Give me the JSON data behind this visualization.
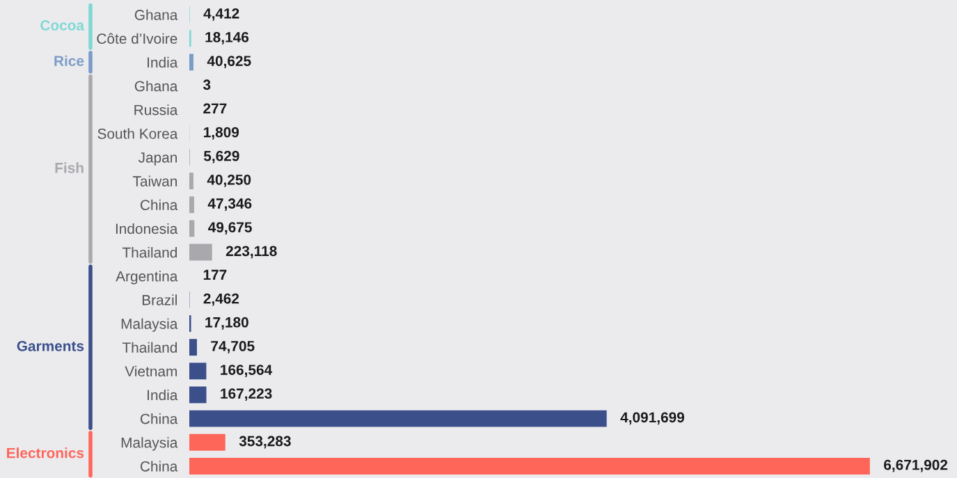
{
  "chart_data": {
    "type": "bar",
    "orientation": "horizontal",
    "categories": [
      "Ghana",
      "Côte d’Ivoire",
      "India",
      "Ghana",
      "Russia",
      "South Korea",
      "Japan",
      "Taiwan",
      "China",
      "Indonesia",
      "Thailand",
      "Argentina",
      "Brazil",
      "Malaysia",
      "Thailand",
      "Vietnam",
      "India",
      "China",
      "Malaysia",
      "China"
    ],
    "series": [
      {
        "name": "Cocoa",
        "color": "#7fd8d4",
        "values": [
          4412,
          18146,
          null,
          null,
          null,
          null,
          null,
          null,
          null,
          null,
          null,
          null,
          null,
          null,
          null,
          null,
          null,
          null,
          null,
          null
        ],
        "value_labels": [
          "4,412",
          "18,146",
          null,
          null,
          null,
          null,
          null,
          null,
          null,
          null,
          null,
          null,
          null,
          null,
          null,
          null,
          null,
          null,
          null,
          null
        ]
      },
      {
        "name": "Rice",
        "color": "#7b9cc8",
        "values": [
          null,
          null,
          40625,
          null,
          null,
          null,
          null,
          null,
          null,
          null,
          null,
          null,
          null,
          null,
          null,
          null,
          null,
          null,
          null,
          null
        ],
        "value_labels": [
          null,
          null,
          "40,625",
          null,
          null,
          null,
          null,
          null,
          null,
          null,
          null,
          null,
          null,
          null,
          null,
          null,
          null,
          null,
          null,
          null
        ]
      },
      {
        "name": "Fish",
        "color": "#a9a9ad",
        "values": [
          null,
          null,
          null,
          3,
          277,
          1809,
          5629,
          40250,
          47346,
          49675,
          223118,
          null,
          null,
          null,
          null,
          null,
          null,
          null,
          null,
          null
        ],
        "value_labels": [
          null,
          null,
          null,
          "3",
          "277",
          "1,809",
          "5,629",
          "40,250",
          "47,346",
          "49,675",
          "223,118",
          null,
          null,
          null,
          null,
          null,
          null,
          null,
          null,
          null
        ]
      },
      {
        "name": "Garments",
        "color": "#3b4f8a",
        "values": [
          null,
          null,
          null,
          null,
          null,
          null,
          null,
          null,
          null,
          null,
          null,
          177,
          2462,
          17180,
          74705,
          166564,
          167223,
          4091699,
          null,
          null
        ],
        "value_labels": [
          null,
          null,
          null,
          null,
          null,
          null,
          null,
          null,
          null,
          null,
          null,
          "177",
          "2,462",
          "17,180",
          "74,705",
          "166,564",
          "167,223",
          "4,091,699",
          null,
          null
        ]
      },
      {
        "name": "Electronics",
        "color": "#ff665a",
        "values": [
          null,
          null,
          null,
          null,
          null,
          null,
          null,
          null,
          null,
          null,
          null,
          null,
          null,
          null,
          null,
          null,
          null,
          null,
          353283,
          6671902
        ],
        "value_labels": [
          null,
          null,
          null,
          null,
          null,
          null,
          null,
          null,
          null,
          null,
          null,
          null,
          null,
          null,
          null,
          null,
          null,
          null,
          "353,283",
          "6,671,902"
        ]
      }
    ]
  }
}
